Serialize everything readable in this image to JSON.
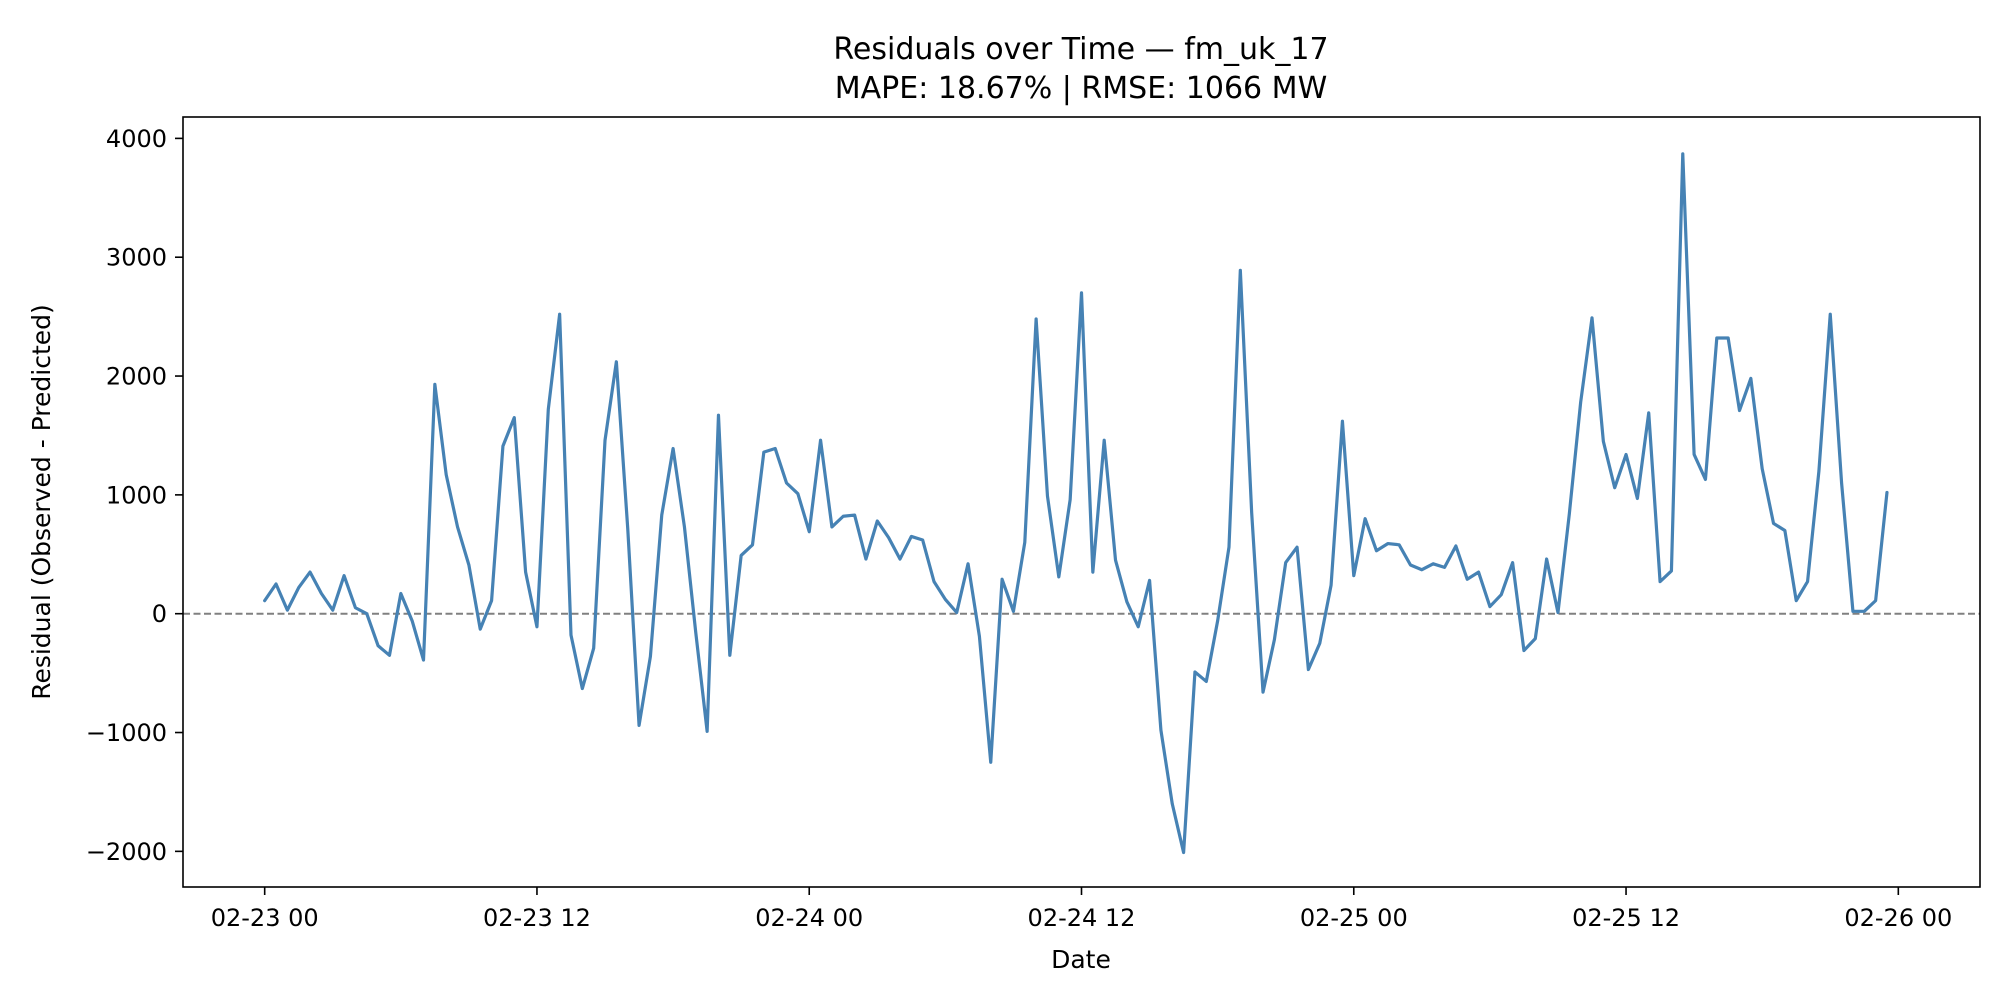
{
  "chart_data": {
    "type": "line",
    "title": "Residuals over Time — fm_uk_17",
    "subtitle": "MAPE: 18.67%  |  RMSE: 1066 MW",
    "xlabel": "Date",
    "ylabel": "Residual (Observed - Predicted)",
    "x_tick_labels": [
      "02-23 00",
      "02-23 12",
      "02-24 00",
      "02-24 12",
      "02-25 00",
      "02-25 12",
      "02-26 00"
    ],
    "x_range_hours": [
      -3.6,
      75.6
    ],
    "y_ticks": [
      -2000,
      -1000,
      0,
      1000,
      2000,
      3000,
      4000
    ],
    "y_tick_labels": [
      "−2000",
      "−1000",
      "0",
      "1000",
      "2000",
      "3000",
      "4000"
    ],
    "ylim": [
      -2300,
      4180
    ],
    "zero_line": {
      "y": 0,
      "color": "#808080",
      "style": "dashed"
    },
    "grid": false,
    "series": [
      {
        "color": "#4682b4",
        "x_start": "02-23 00",
        "x_step_hours": 0.5,
        "values": [
          110,
          250,
          30,
          220,
          350,
          170,
          30,
          320,
          50,
          0,
          -270,
          -350,
          170,
          -60,
          -390,
          1930,
          1170,
          730,
          410,
          -130,
          110,
          1410,
          1650,
          350,
          -110,
          1720,
          2520,
          -180,
          -630,
          -290,
          1460,
          2120,
          720,
          -940,
          -360,
          830,
          1390,
          730,
          -160,
          -990,
          1670,
          -350,
          490,
          580,
          1360,
          1390,
          1100,
          1010,
          690,
          1460,
          730,
          820,
          830,
          460,
          780,
          640,
          460,
          650,
          620,
          270,
          120,
          10,
          420,
          -190,
          -1250,
          290,
          20,
          600,
          2480,
          990,
          310,
          960,
          2700,
          350,
          1460,
          450,
          100,
          -110,
          280,
          -980,
          -1600,
          -2010,
          -490,
          -570,
          -60,
          560,
          2890,
          850,
          -660,
          -220,
          430,
          560,
          -470,
          -250,
          240,
          1620,
          320,
          800,
          530,
          590,
          580,
          410,
          370,
          420,
          390,
          570,
          290,
          350,
          60,
          160,
          430,
          -310,
          -210,
          460,
          10,
          840,
          1780,
          2490,
          1450,
          1060,
          1340,
          970,
          1690,
          270,
          360,
          3870,
          1340,
          1130,
          2320,
          2320,
          1710,
          1980,
          1220,
          760,
          700,
          110,
          270,
          1200,
          2520,
          1100,
          20,
          20,
          110,
          1020
        ]
      }
    ]
  }
}
